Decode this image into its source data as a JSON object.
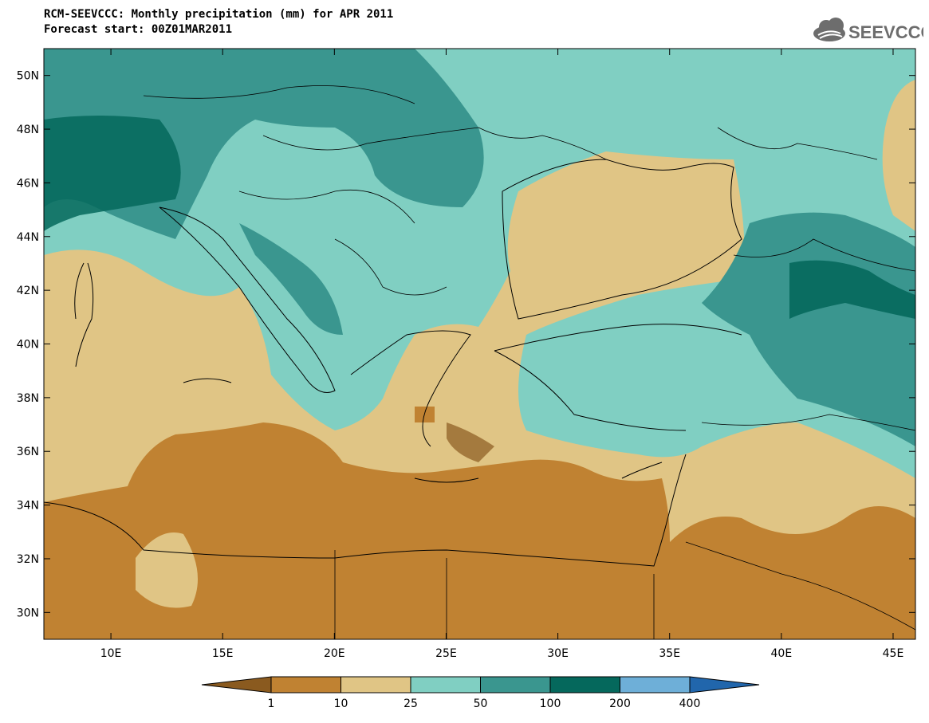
{
  "title": "RCM-SEEVCCC: Monthly precipitation (mm) for APR 2011",
  "subtitle": "Forecast start: 00Z01MAR2011",
  "logo_text": "SEEVCCC",
  "map": {
    "lon_range": [
      7,
      46
    ],
    "lat_range": [
      29,
      51
    ],
    "lat_ticks": [
      {
        "v": 50,
        "label": "50N"
      },
      {
        "v": 48,
        "label": "48N"
      },
      {
        "v": 46,
        "label": "46N"
      },
      {
        "v": 44,
        "label": "44N"
      },
      {
        "v": 42,
        "label": "42N"
      },
      {
        "v": 40,
        "label": "40N"
      },
      {
        "v": 38,
        "label": "38N"
      },
      {
        "v": 36,
        "label": "36N"
      },
      {
        "v": 34,
        "label": "34N"
      },
      {
        "v": 32,
        "label": "32N"
      },
      {
        "v": 30,
        "label": "30N"
      }
    ],
    "lon_ticks": [
      {
        "v": 10,
        "label": "10E"
      },
      {
        "v": 15,
        "label": "15E"
      },
      {
        "v": 20,
        "label": "20E"
      },
      {
        "v": 25,
        "label": "25E"
      },
      {
        "v": 30,
        "label": "30E"
      },
      {
        "v": 35,
        "label": "35E"
      },
      {
        "v": 40,
        "label": "40E"
      },
      {
        "v": 45,
        "label": "45E"
      }
    ]
  },
  "colorbar": {
    "labels": [
      "1",
      "10",
      "25",
      "50",
      "100",
      "200",
      "400"
    ],
    "colors": [
      "#8a5a1f",
      "#c08232",
      "#e0c585",
      "#80cfc2",
      "#3a968f",
      "#05685c",
      "#6eafd8",
      "#2166ac"
    ]
  }
}
